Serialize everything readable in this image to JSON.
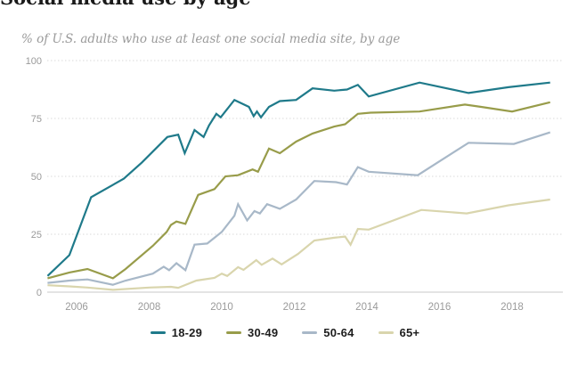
{
  "header": {
    "title": "Social media use by age",
    "subtitle": "% of U.S. adults who use at least one social media site, by age"
  },
  "colors": {
    "accent_18_29": "#1f7a8a",
    "accent_30_49": "#989c4a",
    "accent_50_64": "#a8b8c8",
    "accent_65plus": "#d9d5ad",
    "grid": "#d9d9d9",
    "axis": "#c9c9c9",
    "tick_text": "#9a9a9a"
  },
  "chart_data": {
    "type": "line",
    "title": "Social media use by age",
    "subtitle": "% of U.S. adults who use at least one social media site, by age",
    "xlabel": "",
    "ylabel": "% of U.S. adults",
    "x_ticks": [
      2006,
      2008,
      2010,
      2012,
      2014,
      2016,
      2018
    ],
    "y_ticks": [
      0,
      25,
      50,
      75,
      100
    ],
    "xlim": [
      2005.19,
      2019.4
    ],
    "ylim": [
      0,
      100
    ],
    "grid": "horizontal-dotted",
    "legend_position": "bottom",
    "series": [
      {
        "name": "18-29",
        "color": "#1f7a8a",
        "points": [
          [
            2005.2,
            7
          ],
          [
            2005.8,
            16
          ],
          [
            2006.4,
            41
          ],
          [
            2007.3,
            49
          ],
          [
            2007.8,
            56
          ],
          [
            2008.5,
            67
          ],
          [
            2008.8,
            68
          ],
          [
            2008.98,
            60
          ],
          [
            2009.25,
            70
          ],
          [
            2009.5,
            67
          ],
          [
            2009.65,
            72
          ],
          [
            2009.85,
            77
          ],
          [
            2009.97,
            75.5
          ],
          [
            2010.35,
            83
          ],
          [
            2010.75,
            80
          ],
          [
            2010.88,
            76
          ],
          [
            2010.97,
            78
          ],
          [
            2011.08,
            75.5
          ],
          [
            2011.3,
            80
          ],
          [
            2011.6,
            82.5
          ],
          [
            2012.05,
            83
          ],
          [
            2012.5,
            88
          ],
          [
            2013.1,
            87
          ],
          [
            2013.45,
            87.5
          ],
          [
            2013.75,
            89.5
          ],
          [
            2014.05,
            84.5
          ],
          [
            2015.45,
            90.5
          ],
          [
            2016.8,
            86
          ],
          [
            2017.9,
            88.5
          ],
          [
            2019.05,
            90.5
          ]
        ]
      },
      {
        "name": "30-49",
        "color": "#989c4a",
        "points": [
          [
            2005.2,
            6
          ],
          [
            2005.8,
            8.5
          ],
          [
            2006.3,
            10
          ],
          [
            2007.0,
            6
          ],
          [
            2007.35,
            10
          ],
          [
            2008.1,
            20
          ],
          [
            2008.48,
            26
          ],
          [
            2008.6,
            29
          ],
          [
            2008.75,
            30.5
          ],
          [
            2009.0,
            29.5
          ],
          [
            2009.35,
            42
          ],
          [
            2009.8,
            44.5
          ],
          [
            2010.1,
            50
          ],
          [
            2010.45,
            50.5
          ],
          [
            2010.85,
            53
          ],
          [
            2011.0,
            52
          ],
          [
            2011.3,
            62
          ],
          [
            2011.6,
            60
          ],
          [
            2012.05,
            65
          ],
          [
            2012.5,
            68.5
          ],
          [
            2013.1,
            71.5
          ],
          [
            2013.4,
            72.5
          ],
          [
            2013.75,
            77
          ],
          [
            2014.1,
            77.5
          ],
          [
            2015.45,
            78
          ],
          [
            2016.7,
            81
          ],
          [
            2017.15,
            80
          ],
          [
            2018.0,
            78
          ],
          [
            2019.05,
            82
          ]
        ]
      },
      {
        "name": "50-64",
        "color": "#a8b8c8",
        "points": [
          [
            2005.2,
            4
          ],
          [
            2005.8,
            5
          ],
          [
            2006.3,
            5.5
          ],
          [
            2007.0,
            3.2
          ],
          [
            2007.35,
            5
          ],
          [
            2008.1,
            8
          ],
          [
            2008.4,
            11
          ],
          [
            2008.55,
            9.5
          ],
          [
            2008.75,
            12.5
          ],
          [
            2009.0,
            9.5
          ],
          [
            2009.25,
            20.5
          ],
          [
            2009.6,
            21
          ],
          [
            2010.0,
            26
          ],
          [
            2010.35,
            33
          ],
          [
            2010.45,
            38
          ],
          [
            2010.7,
            31
          ],
          [
            2010.9,
            35
          ],
          [
            2011.05,
            34
          ],
          [
            2011.25,
            38
          ],
          [
            2011.6,
            36
          ],
          [
            2012.05,
            40
          ],
          [
            2012.55,
            48
          ],
          [
            2013.15,
            47.5
          ],
          [
            2013.45,
            46.5
          ],
          [
            2013.75,
            54
          ],
          [
            2014.05,
            52
          ],
          [
            2015.4,
            50.5
          ],
          [
            2016.8,
            64.5
          ],
          [
            2018.05,
            64
          ],
          [
            2019.05,
            69
          ]
        ]
      },
      {
        "name": "65+",
        "color": "#d9d5ad",
        "points": [
          [
            2005.2,
            3
          ],
          [
            2005.8,
            2.5
          ],
          [
            2006.3,
            2
          ],
          [
            2007.0,
            1
          ],
          [
            2008.0,
            2
          ],
          [
            2008.6,
            2.3
          ],
          [
            2008.8,
            1.9
          ],
          [
            2009.3,
            5
          ],
          [
            2009.8,
            6.2
          ],
          [
            2010.0,
            8
          ],
          [
            2010.15,
            7
          ],
          [
            2010.45,
            10.8
          ],
          [
            2010.6,
            9.6
          ],
          [
            2010.95,
            13.8
          ],
          [
            2011.1,
            11.8
          ],
          [
            2011.4,
            14.5
          ],
          [
            2011.65,
            12
          ],
          [
            2012.1,
            16.5
          ],
          [
            2012.55,
            22.3
          ],
          [
            2013.1,
            23.5
          ],
          [
            2013.4,
            24
          ],
          [
            2013.55,
            20.5
          ],
          [
            2013.75,
            27.3
          ],
          [
            2014.05,
            27
          ],
          [
            2015.5,
            35.5
          ],
          [
            2016.75,
            34
          ],
          [
            2017.9,
            37.5
          ],
          [
            2019.05,
            40
          ]
        ]
      }
    ]
  }
}
